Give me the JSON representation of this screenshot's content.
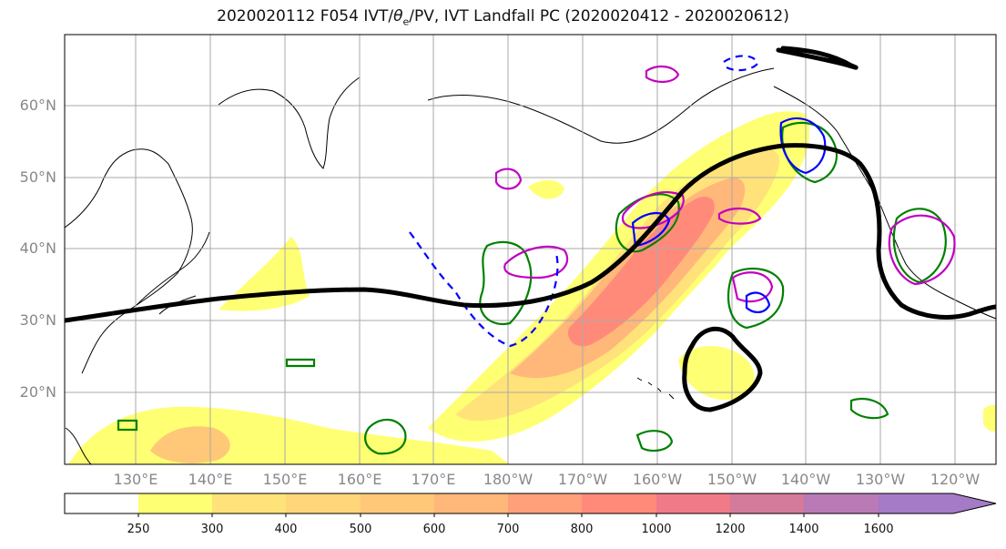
{
  "title": {
    "prefix": "2020020112 F054 IVT/",
    "theta": "θ",
    "theta_sub": "e",
    "suffix": "/PV, IVT Landfall PC (2020020412 - 2020020612)"
  },
  "axes": {
    "lat_ticks": [
      "60°N",
      "50°N",
      "40°N",
      "30°N",
      "20°N"
    ],
    "lon_ticks": [
      "130°E",
      "140°E",
      "150°E",
      "160°E",
      "170°E",
      "180°W",
      "170°W",
      "160°W",
      "150°W",
      "140°W",
      "130°W",
      "120°W"
    ]
  },
  "colorbar": {
    "levels": [
      "250",
      "300",
      "400",
      "500",
      "600",
      "700",
      "800",
      "1000",
      "1200",
      "1400",
      "1600"
    ],
    "colors": [
      "#ffffff",
      "#ffff73",
      "#ffe27a",
      "#ffd67a",
      "#ffc878",
      "#ffb77a",
      "#ffa07a",
      "#ff8a7a",
      "#f07a88",
      "#d47a9a",
      "#b97ab6",
      "#a57ac6"
    ]
  },
  "colors": {
    "land_outline": "#000000",
    "grid": "#aaaaaa",
    "jet_contour": "#000000",
    "pv_contour": "#008000",
    "theta_contour_pos": "#c000c0",
    "theta_contour_neg": "#0000ff"
  }
}
